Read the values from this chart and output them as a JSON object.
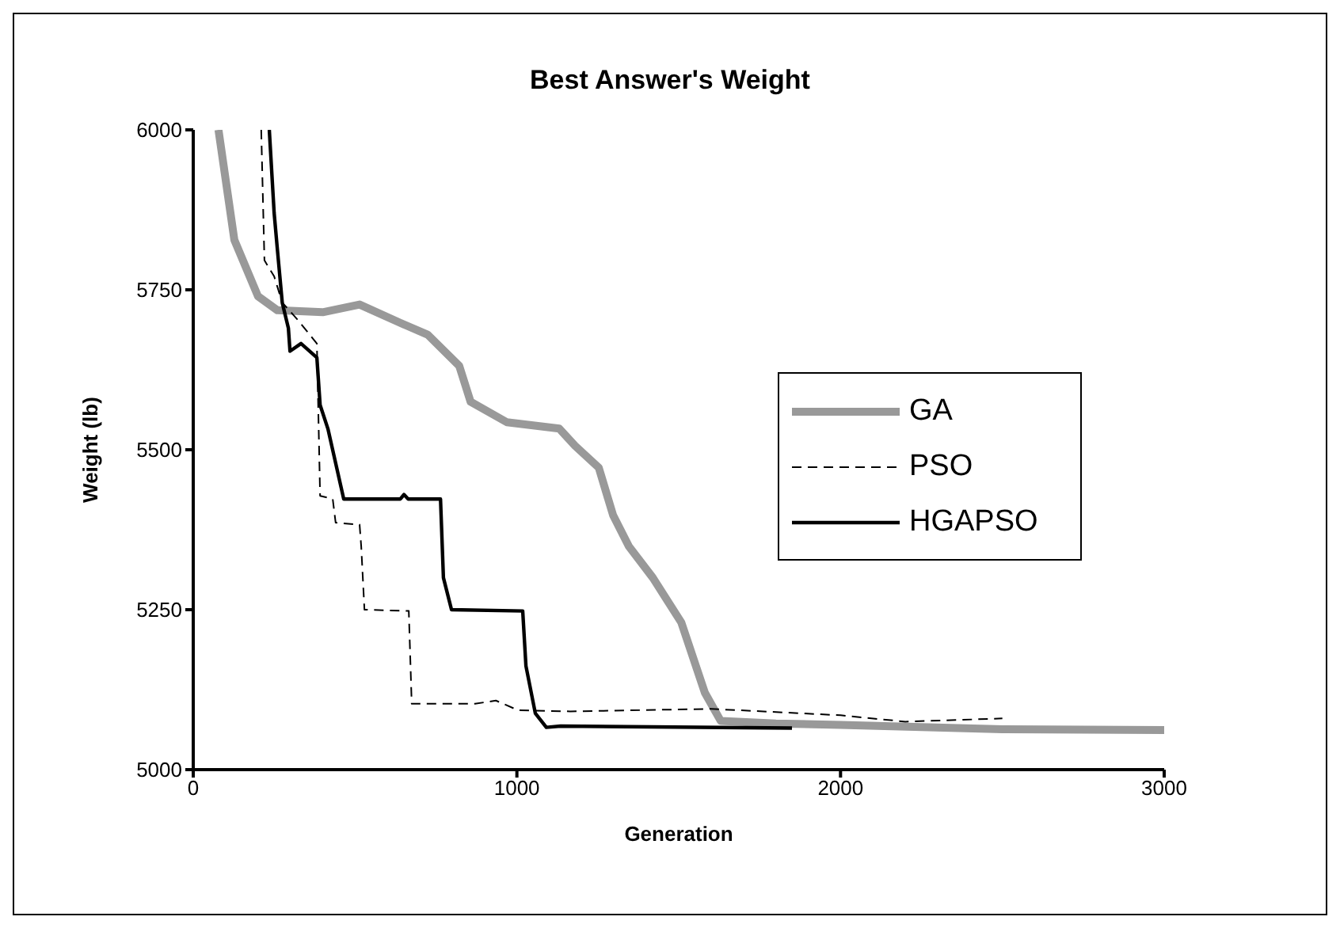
{
  "chart_data": {
    "type": "line",
    "title": "Best Answer's Weight",
    "xlabel": "Generation",
    "ylabel": "Weight (lb)",
    "xlim": [
      0,
      3000
    ],
    "xticks": [
      0,
      1000,
      2000,
      3000
    ],
    "ylim": [
      5000,
      6000
    ],
    "yticks": [
      5000,
      5250,
      5500,
      5750,
      6000
    ],
    "legend": "right",
    "marker": "none",
    "series": [
      {
        "name": "GA",
        "color": "#999999",
        "line_style": "solid",
        "x": [
          78,
          127,
          200,
          260,
          400,
          514,
          641,
          724,
          822,
          857,
          969,
          1131,
          1180,
          1253,
          1297,
          1346,
          1420,
          1508,
          1581,
          1630,
          1800,
          2000,
          2500,
          3000
        ],
        "values": [
          6000,
          5828,
          5740,
          5718,
          5715,
          5727,
          5698,
          5680,
          5631,
          5575,
          5543,
          5533,
          5506,
          5472,
          5398,
          5349,
          5300,
          5230,
          5120,
          5076,
          5072,
          5070,
          5063,
          5062
        ]
      },
      {
        "name": "PSO",
        "color": "#000000",
        "line_style": "dashed",
        "x": [
          210,
          220,
          250,
          275,
          323,
          382,
          392,
          431,
          440,
          514,
          519,
          529,
          666,
          675,
          871,
          935,
          1003,
          1165,
          1600,
          2000,
          2200,
          2500
        ],
        "values": [
          6000,
          5796,
          5771,
          5730,
          5703,
          5666,
          5428,
          5423,
          5386,
          5383,
          5349,
          5250,
          5248,
          5103,
          5103,
          5108,
          5093,
          5091,
          5095,
          5085,
          5075,
          5080
        ]
      },
      {
        "name": "HGAPSO",
        "color": "#000000",
        "line_style": "solid",
        "x": [
          235,
          250,
          260,
          275,
          294,
          299,
          333,
          382,
          392,
          416,
          465,
          640,
          651,
          664,
          764,
          773,
          798,
          1018,
          1028,
          1057,
          1091,
          1135,
          1850
        ],
        "values": [
          6000,
          5870,
          5813,
          5730,
          5690,
          5654,
          5666,
          5644,
          5570,
          5533,
          5423,
          5423,
          5430,
          5423,
          5423,
          5300,
          5250,
          5248,
          5162,
          5088,
          5066,
          5068,
          5065
        ]
      }
    ]
  }
}
